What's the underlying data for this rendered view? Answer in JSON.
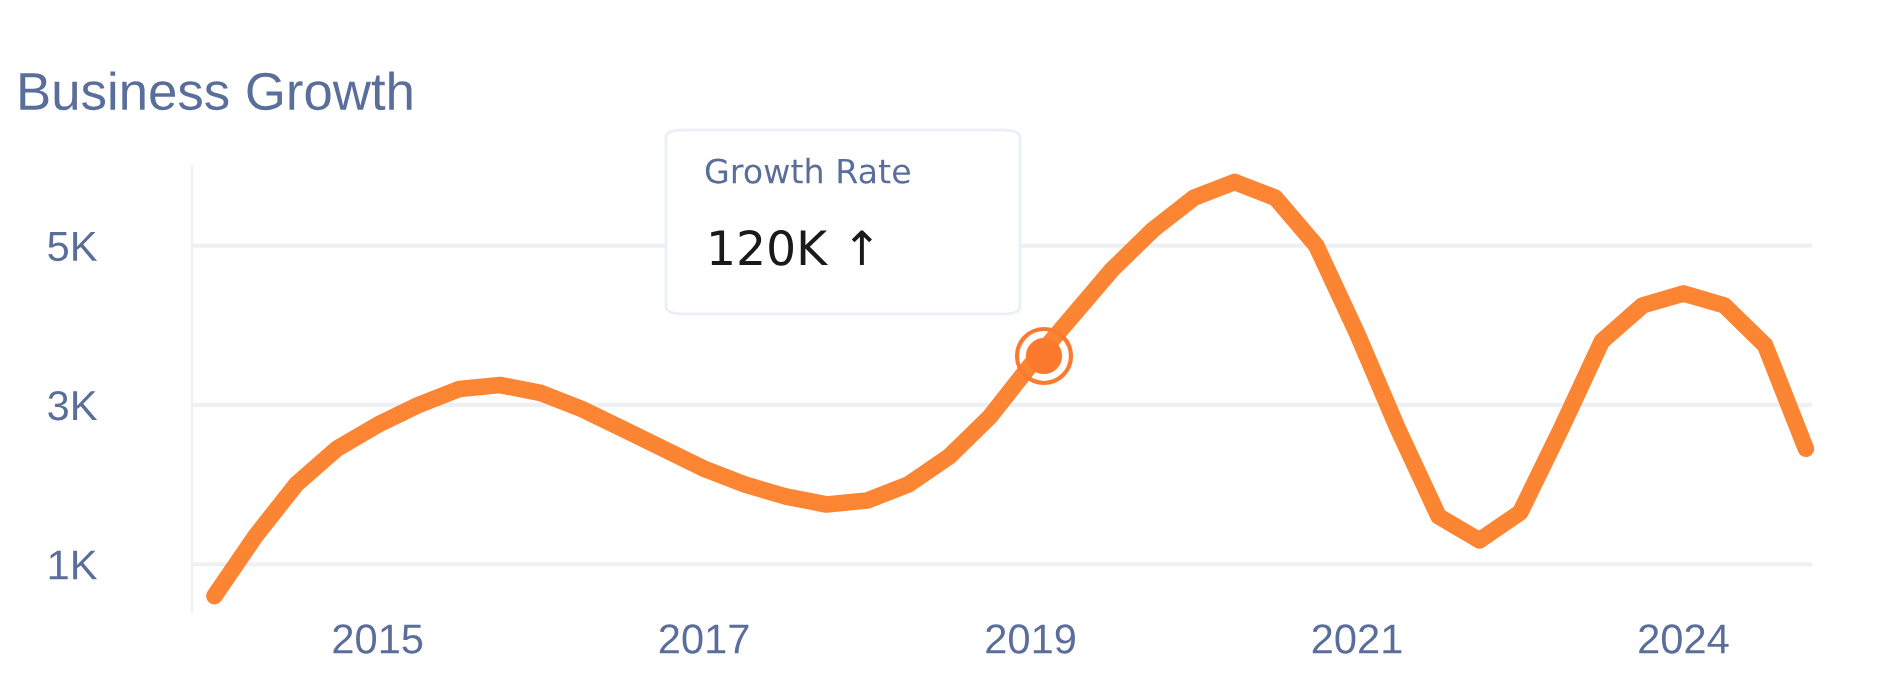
{
  "chart_data": {
    "type": "line",
    "title": "Business Growth",
    "categories": [
      null,
      null,
      null,
      null,
      "2015",
      null,
      null,
      null,
      null,
      null,
      null,
      null,
      "2017",
      null,
      null,
      null,
      null,
      null,
      null,
      null,
      "2019",
      null,
      null,
      null,
      null,
      null,
      null,
      null,
      "2021",
      null,
      null,
      null,
      null,
      null,
      null,
      null,
      "2024",
      null,
      null,
      null
    ],
    "series": [
      {
        "color": "#fb8532",
        "values": [
          600,
          1350,
          2000,
          2450,
          2750,
          3000,
          3200,
          3250,
          3150,
          2950,
          2700,
          2450,
          2200,
          2000,
          1850,
          1750,
          1800,
          2000,
          2350,
          2850,
          3500,
          4100,
          4700,
          5200,
          5600,
          5800,
          5600,
          5000,
          3900,
          2700,
          1600,
          1300,
          1650,
          2700,
          3800,
          4250,
          4400,
          4250,
          3750,
          2450
        ]
      }
    ],
    "ylim": [
      400,
      6000
    ],
    "yticks": [
      {
        "value": 1000,
        "label": "1K"
      },
      {
        "value": 3000,
        "label": "3K"
      },
      {
        "value": 5000,
        "label": "5K"
      }
    ],
    "grid": "y",
    "annotations": [
      "Growth Rate",
      "120K ↑"
    ]
  }
}
